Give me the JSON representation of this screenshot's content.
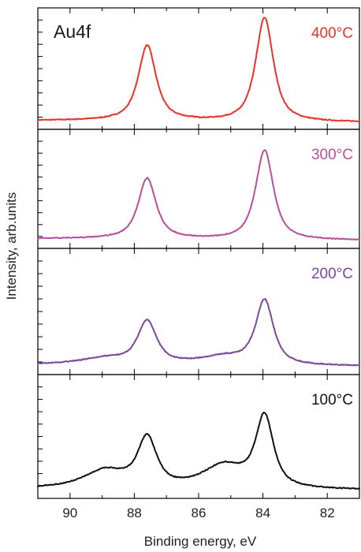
{
  "chart_data": {
    "type": "line",
    "title": "Au4f",
    "xlabel": "Binding energy, eV",
    "ylabel": "Intensity, arb.units",
    "xlim": [
      91,
      81
    ],
    "x_reversed": true,
    "xticks": [
      "90",
      "88",
      "86",
      "84",
      "82"
    ],
    "x_tick_values": [
      90,
      88,
      86,
      84,
      82
    ],
    "y_units": "arbitrary (normalized 0-1 within each panel)",
    "y_tick_labels_shown": false,
    "grid": false,
    "layout": "4 vertically stacked panels sharing x axis",
    "series": [
      {
        "name": "400°C",
        "color": "#e8332a",
        "baseline": 0.02,
        "peaks": [
          {
            "center": 87.6,
            "height": 0.67,
            "width": 0.33
          },
          {
            "center": 83.95,
            "height": 0.93,
            "width": 0.33
          }
        ]
      },
      {
        "name": "300°C",
        "color": "#b5509f",
        "baseline": 0.03,
        "peaks": [
          {
            "center": 87.6,
            "height": 0.55,
            "width": 0.33
          },
          {
            "center": 83.95,
            "height": 0.82,
            "width": 0.33
          }
        ]
      },
      {
        "name": "200°C",
        "color": "#7d479a",
        "baseline": 0.03,
        "peaks": [
          {
            "center": 88.9,
            "height": 0.05,
            "width": 0.9
          },
          {
            "center": 87.6,
            "height": 0.36,
            "width": 0.35
          },
          {
            "center": 85.2,
            "height": 0.07,
            "width": 0.9
          },
          {
            "center": 83.95,
            "height": 0.55,
            "width": 0.33
          }
        ]
      },
      {
        "name": "100°C",
        "color": "#111111",
        "baseline": 0.03,
        "peaks": [
          {
            "center": 88.9,
            "height": 0.15,
            "width": 0.8
          },
          {
            "center": 87.6,
            "height": 0.42,
            "width": 0.35
          },
          {
            "center": 85.2,
            "height": 0.2,
            "width": 0.8
          },
          {
            "center": 83.95,
            "height": 0.62,
            "width": 0.33
          }
        ]
      }
    ]
  }
}
